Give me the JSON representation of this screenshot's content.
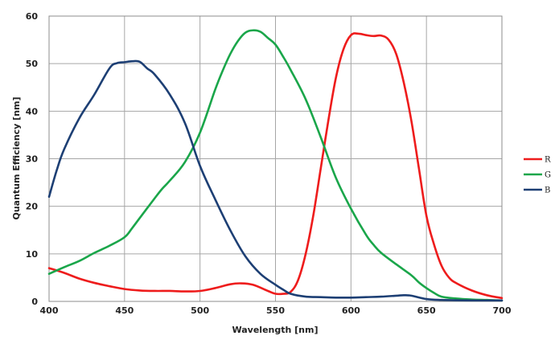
{
  "chart_data": {
    "type": "line",
    "xlabel": "Wavelength [nm]",
    "ylabel": "Quantum Efficiency [nm]",
    "xlim": [
      400,
      700
    ],
    "ylim": [
      0,
      60
    ],
    "x_ticks": [
      400,
      450,
      500,
      550,
      600,
      650,
      700
    ],
    "y_ticks": [
      0,
      10,
      20,
      30,
      40,
      50,
      60
    ],
    "grid": true,
    "legend_position": "right",
    "series": [
      {
        "name": "R",
        "color": "#ee1c1c",
        "points": [
          [
            400,
            7
          ],
          [
            410,
            6
          ],
          [
            420,
            4.8
          ],
          [
            430,
            3.9
          ],
          [
            440,
            3.2
          ],
          [
            450,
            2.6
          ],
          [
            460,
            2.3
          ],
          [
            470,
            2.2
          ],
          [
            480,
            2.2
          ],
          [
            490,
            2.1
          ],
          [
            500,
            2.2
          ],
          [
            510,
            2.8
          ],
          [
            520,
            3.6
          ],
          [
            527,
            3.8
          ],
          [
            535,
            3.5
          ],
          [
            545,
            2.2
          ],
          [
            550,
            1.6
          ],
          [
            555,
            1.6
          ],
          [
            560,
            2.0
          ],
          [
            565,
            4.5
          ],
          [
            570,
            10
          ],
          [
            575,
            18
          ],
          [
            580,
            28
          ],
          [
            585,
            38
          ],
          [
            590,
            47
          ],
          [
            595,
            53
          ],
          [
            600,
            56
          ],
          [
            605,
            56.3
          ],
          [
            610,
            56
          ],
          [
            615,
            55.8
          ],
          [
            620,
            55.9
          ],
          [
            625,
            55
          ],
          [
            630,
            52
          ],
          [
            635,
            46
          ],
          [
            640,
            38
          ],
          [
            645,
            28
          ],
          [
            650,
            18
          ],
          [
            655,
            12
          ],
          [
            660,
            7.5
          ],
          [
            665,
            5
          ],
          [
            670,
            3.8
          ],
          [
            680,
            2.3
          ],
          [
            690,
            1.3
          ],
          [
            700,
            0.7
          ]
        ]
      },
      {
        "name": "G",
        "color": "#1aa64a",
        "points": [
          [
            400,
            5.8
          ],
          [
            410,
            7.2
          ],
          [
            420,
            8.5
          ],
          [
            430,
            10.2
          ],
          [
            440,
            11.7
          ],
          [
            450,
            13.5
          ],
          [
            455,
            15.4
          ],
          [
            460,
            17.5
          ],
          [
            470,
            21.7
          ],
          [
            475,
            23.7
          ],
          [
            480,
            25.4
          ],
          [
            490,
            29.3
          ],
          [
            500,
            35.5
          ],
          [
            510,
            44.5
          ],
          [
            515,
            48.5
          ],
          [
            520,
            52
          ],
          [
            525,
            54.7
          ],
          [
            530,
            56.5
          ],
          [
            535,
            57
          ],
          [
            540,
            56.7
          ],
          [
            545,
            55.4
          ],
          [
            550,
            54
          ],
          [
            555,
            51.5
          ],
          [
            560,
            48.7
          ],
          [
            570,
            42.5
          ],
          [
            580,
            34.5
          ],
          [
            590,
            26
          ],
          [
            600,
            19.5
          ],
          [
            610,
            14
          ],
          [
            615,
            11.9
          ],
          [
            620,
            10.2
          ],
          [
            630,
            7.8
          ],
          [
            640,
            5.5
          ],
          [
            645,
            4.0
          ],
          [
            650,
            2.8
          ],
          [
            655,
            1.8
          ],
          [
            660,
            1.0
          ],
          [
            670,
            0.6
          ],
          [
            680,
            0.4
          ],
          [
            690,
            0.3
          ],
          [
            700,
            0.2
          ]
        ]
      },
      {
        "name": "B",
        "color": "#1d3f74",
        "points": [
          [
            400,
            22
          ],
          [
            405,
            27.5
          ],
          [
            410,
            32
          ],
          [
            420,
            38.5
          ],
          [
            430,
            43.5
          ],
          [
            440,
            49
          ],
          [
            445,
            50.1
          ],
          [
            450,
            50.3
          ],
          [
            455,
            50.5
          ],
          [
            460,
            50.4
          ],
          [
            465,
            49
          ],
          [
            470,
            47.7
          ],
          [
            480,
            43.5
          ],
          [
            490,
            37.5
          ],
          [
            500,
            28.5
          ],
          [
            510,
            21.5
          ],
          [
            520,
            15
          ],
          [
            530,
            9.5
          ],
          [
            540,
            5.8
          ],
          [
            550,
            3.5
          ],
          [
            555,
            2.5
          ],
          [
            560,
            1.6
          ],
          [
            570,
            1.0
          ],
          [
            580,
            0.9
          ],
          [
            590,
            0.8
          ],
          [
            600,
            0.8
          ],
          [
            610,
            0.9
          ],
          [
            620,
            1.0
          ],
          [
            630,
            1.2
          ],
          [
            635,
            1.3
          ],
          [
            640,
            1.2
          ],
          [
            650,
            0.5
          ],
          [
            660,
            0.3
          ],
          [
            680,
            0.2
          ],
          [
            700,
            0.2
          ]
        ]
      }
    ]
  }
}
